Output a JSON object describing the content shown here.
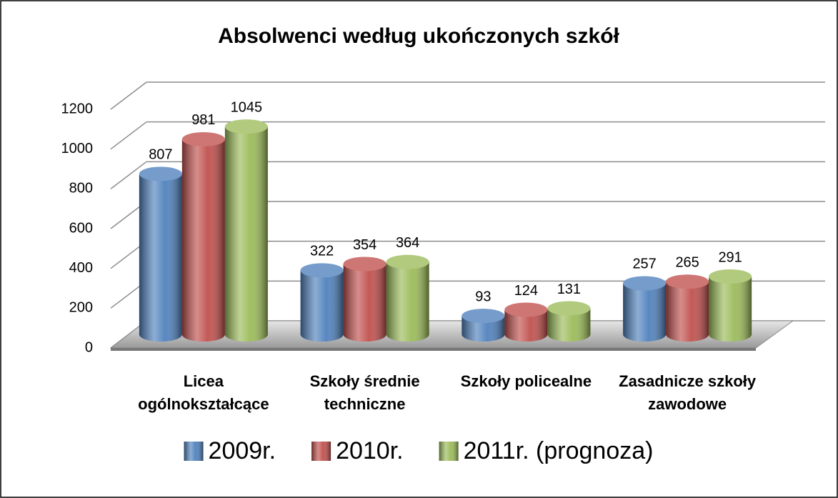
{
  "chart_data": {
    "type": "bar3d",
    "title": "Absolwenci według ukończonych szkół",
    "categories": [
      "Licea ogólnokształcące",
      "Szkoły średnie techniczne",
      "Szkoły policealne",
      "Zasadnicze szkoły zawodowe"
    ],
    "series": [
      {
        "name": "2009r.",
        "color": "#4f81bd",
        "values": [
          807,
          322,
          93,
          257
        ]
      },
      {
        "name": "2010r.",
        "color": "#c0504d",
        "values": [
          981,
          354,
          124,
          265
        ]
      },
      {
        "name": "2011r. (prognoza)",
        "color": "#9bbb59",
        "values": [
          1045,
          364,
          131,
          291
        ]
      }
    ],
    "ylim": [
      0,
      1200
    ],
    "yticks": [
      0,
      200,
      400,
      600,
      800,
      1000,
      1200
    ],
    "grid": true,
    "legend": "bottom"
  }
}
